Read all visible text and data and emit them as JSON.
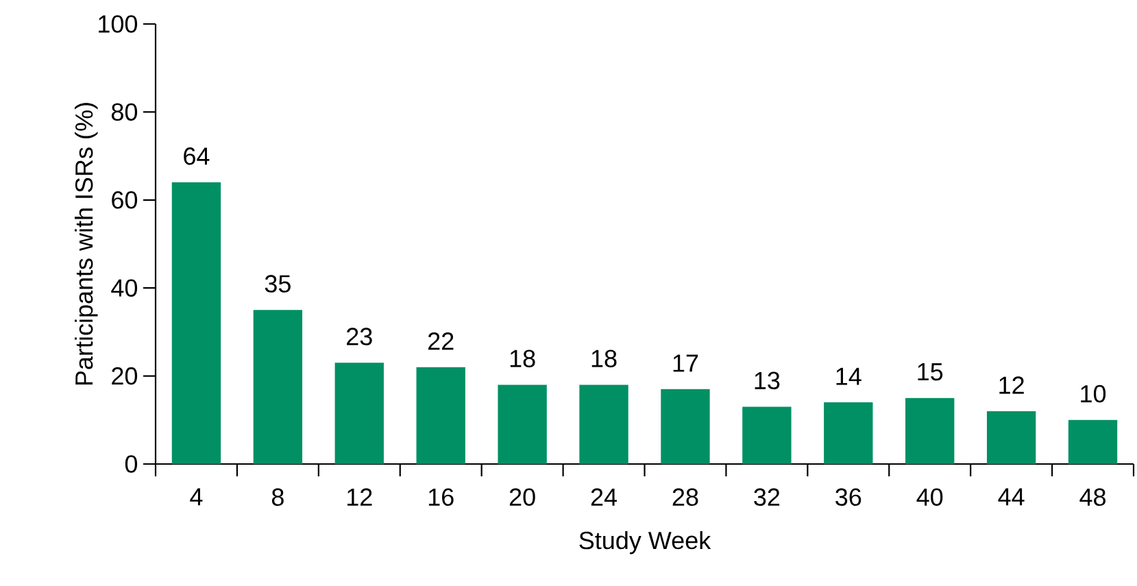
{
  "chart_data": {
    "type": "bar",
    "xlabel": "Study Week",
    "ylabel": "Participants with ISRs (%)",
    "categories": [
      "4",
      "8",
      "12",
      "16",
      "20",
      "24",
      "28",
      "32",
      "36",
      "40",
      "44",
      "48"
    ],
    "values": [
      64,
      35,
      23,
      22,
      18,
      18,
      17,
      13,
      14,
      15,
      12,
      10
    ],
    "value_labels": [
      "64",
      "35",
      "23",
      "22",
      "18",
      "18",
      "17",
      "13",
      "14",
      "15",
      "12",
      "10"
    ],
    "color": "#009063",
    "ylim": [
      0,
      100
    ],
    "yticks": [
      0,
      20,
      40,
      60,
      80,
      100
    ]
  }
}
